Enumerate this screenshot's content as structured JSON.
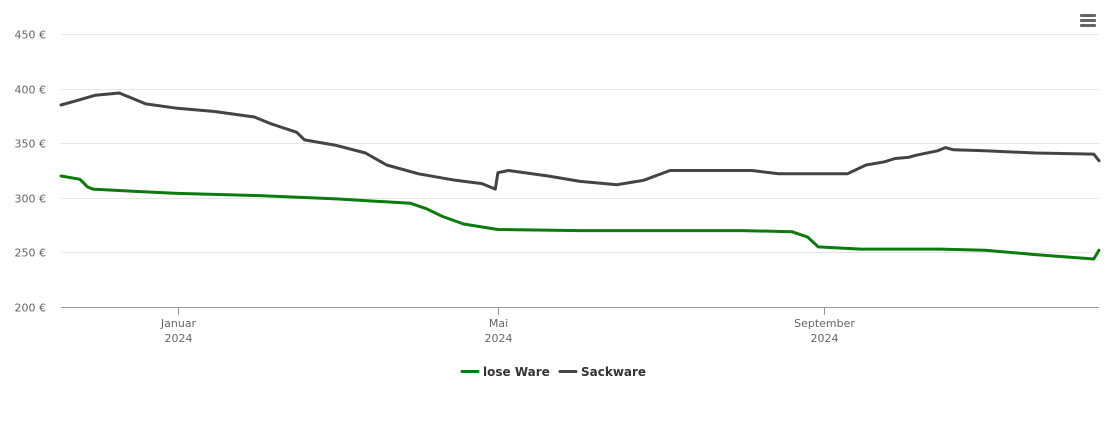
{
  "menu": {
    "icon": "hamburger-menu-icon"
  },
  "chart_data": {
    "type": "line",
    "title": "",
    "xlabel": "",
    "ylabel": "",
    "ylim": [
      200,
      450
    ],
    "y_ticks": [
      200,
      250,
      300,
      350,
      400,
      450
    ],
    "y_tick_labels": [
      "200 €",
      "250 €",
      "300 €",
      "350 €",
      "400 €",
      "450 €"
    ],
    "x_range": [
      "2023-11-18",
      "2024-12-14"
    ],
    "x_ticks": [
      {
        "date": "2024-01-01",
        "month": "Januar",
        "year": "2024"
      },
      {
        "date": "2024-05-01",
        "month": "Mai",
        "year": "2024"
      },
      {
        "date": "2024-09-01",
        "month": "September",
        "year": "2024"
      }
    ],
    "grid": true,
    "legend_position": "bottom-center",
    "series": [
      {
        "name": "lose Ware",
        "color": "#0c7a0c",
        "points": [
          [
            "2023-11-18",
            320
          ],
          [
            "2023-11-25",
            317
          ],
          [
            "2023-11-26",
            315
          ],
          [
            "2023-11-28",
            310
          ],
          [
            "2023-11-30",
            308
          ],
          [
            "2023-12-15",
            306
          ],
          [
            "2024-01-01",
            304
          ],
          [
            "2024-02-01",
            302
          ],
          [
            "2024-03-01",
            299
          ],
          [
            "2024-03-29",
            295
          ],
          [
            "2024-04-04",
            290
          ],
          [
            "2024-04-10",
            283
          ],
          [
            "2024-04-18",
            276
          ],
          [
            "2024-05-01",
            271
          ],
          [
            "2024-06-01",
            270
          ],
          [
            "2024-07-01",
            270
          ],
          [
            "2024-08-01",
            270
          ],
          [
            "2024-08-20",
            269
          ],
          [
            "2024-08-26",
            264
          ],
          [
            "2024-08-30",
            255
          ],
          [
            "2024-09-15",
            253
          ],
          [
            "2024-10-15",
            253
          ],
          [
            "2024-11-01",
            252
          ],
          [
            "2024-11-20",
            248
          ],
          [
            "2024-12-12",
            244
          ],
          [
            "2024-12-14",
            252
          ]
        ]
      },
      {
        "name": "Sackware",
        "color": "#434348",
        "points": [
          [
            "2023-11-18",
            385
          ],
          [
            "2023-11-24",
            389
          ],
          [
            "2023-12-01",
            394
          ],
          [
            "2023-12-10",
            396
          ],
          [
            "2023-12-20",
            386
          ],
          [
            "2024-01-01",
            382
          ],
          [
            "2024-01-15",
            379
          ],
          [
            "2024-01-30",
            374
          ],
          [
            "2024-02-05",
            368
          ],
          [
            "2024-02-15",
            360
          ],
          [
            "2024-02-18",
            353
          ],
          [
            "2024-03-01",
            348
          ],
          [
            "2024-03-12",
            341
          ],
          [
            "2024-03-20",
            330
          ],
          [
            "2024-04-01",
            322
          ],
          [
            "2024-04-15",
            316
          ],
          [
            "2024-04-25",
            313
          ],
          [
            "2024-04-30",
            308
          ],
          [
            "2024-05-01",
            323
          ],
          [
            "2024-05-05",
            325
          ],
          [
            "2024-05-20",
            320
          ],
          [
            "2024-06-01",
            315
          ],
          [
            "2024-06-15",
            312
          ],
          [
            "2024-06-25",
            316
          ],
          [
            "2024-07-05",
            325
          ],
          [
            "2024-07-20",
            325
          ],
          [
            "2024-08-05",
            325
          ],
          [
            "2024-08-15",
            322
          ],
          [
            "2024-08-25",
            322
          ],
          [
            "2024-09-10",
            322
          ],
          [
            "2024-09-17",
            330
          ],
          [
            "2024-09-24",
            333
          ],
          [
            "2024-09-28",
            336
          ],
          [
            "2024-10-03",
            337
          ],
          [
            "2024-10-06",
            339
          ],
          [
            "2024-10-14",
            343
          ],
          [
            "2024-10-17",
            346
          ],
          [
            "2024-10-20",
            344
          ],
          [
            "2024-11-01",
            343
          ],
          [
            "2024-11-20",
            341
          ],
          [
            "2024-12-12",
            340
          ],
          [
            "2024-12-14",
            334
          ]
        ]
      }
    ]
  }
}
